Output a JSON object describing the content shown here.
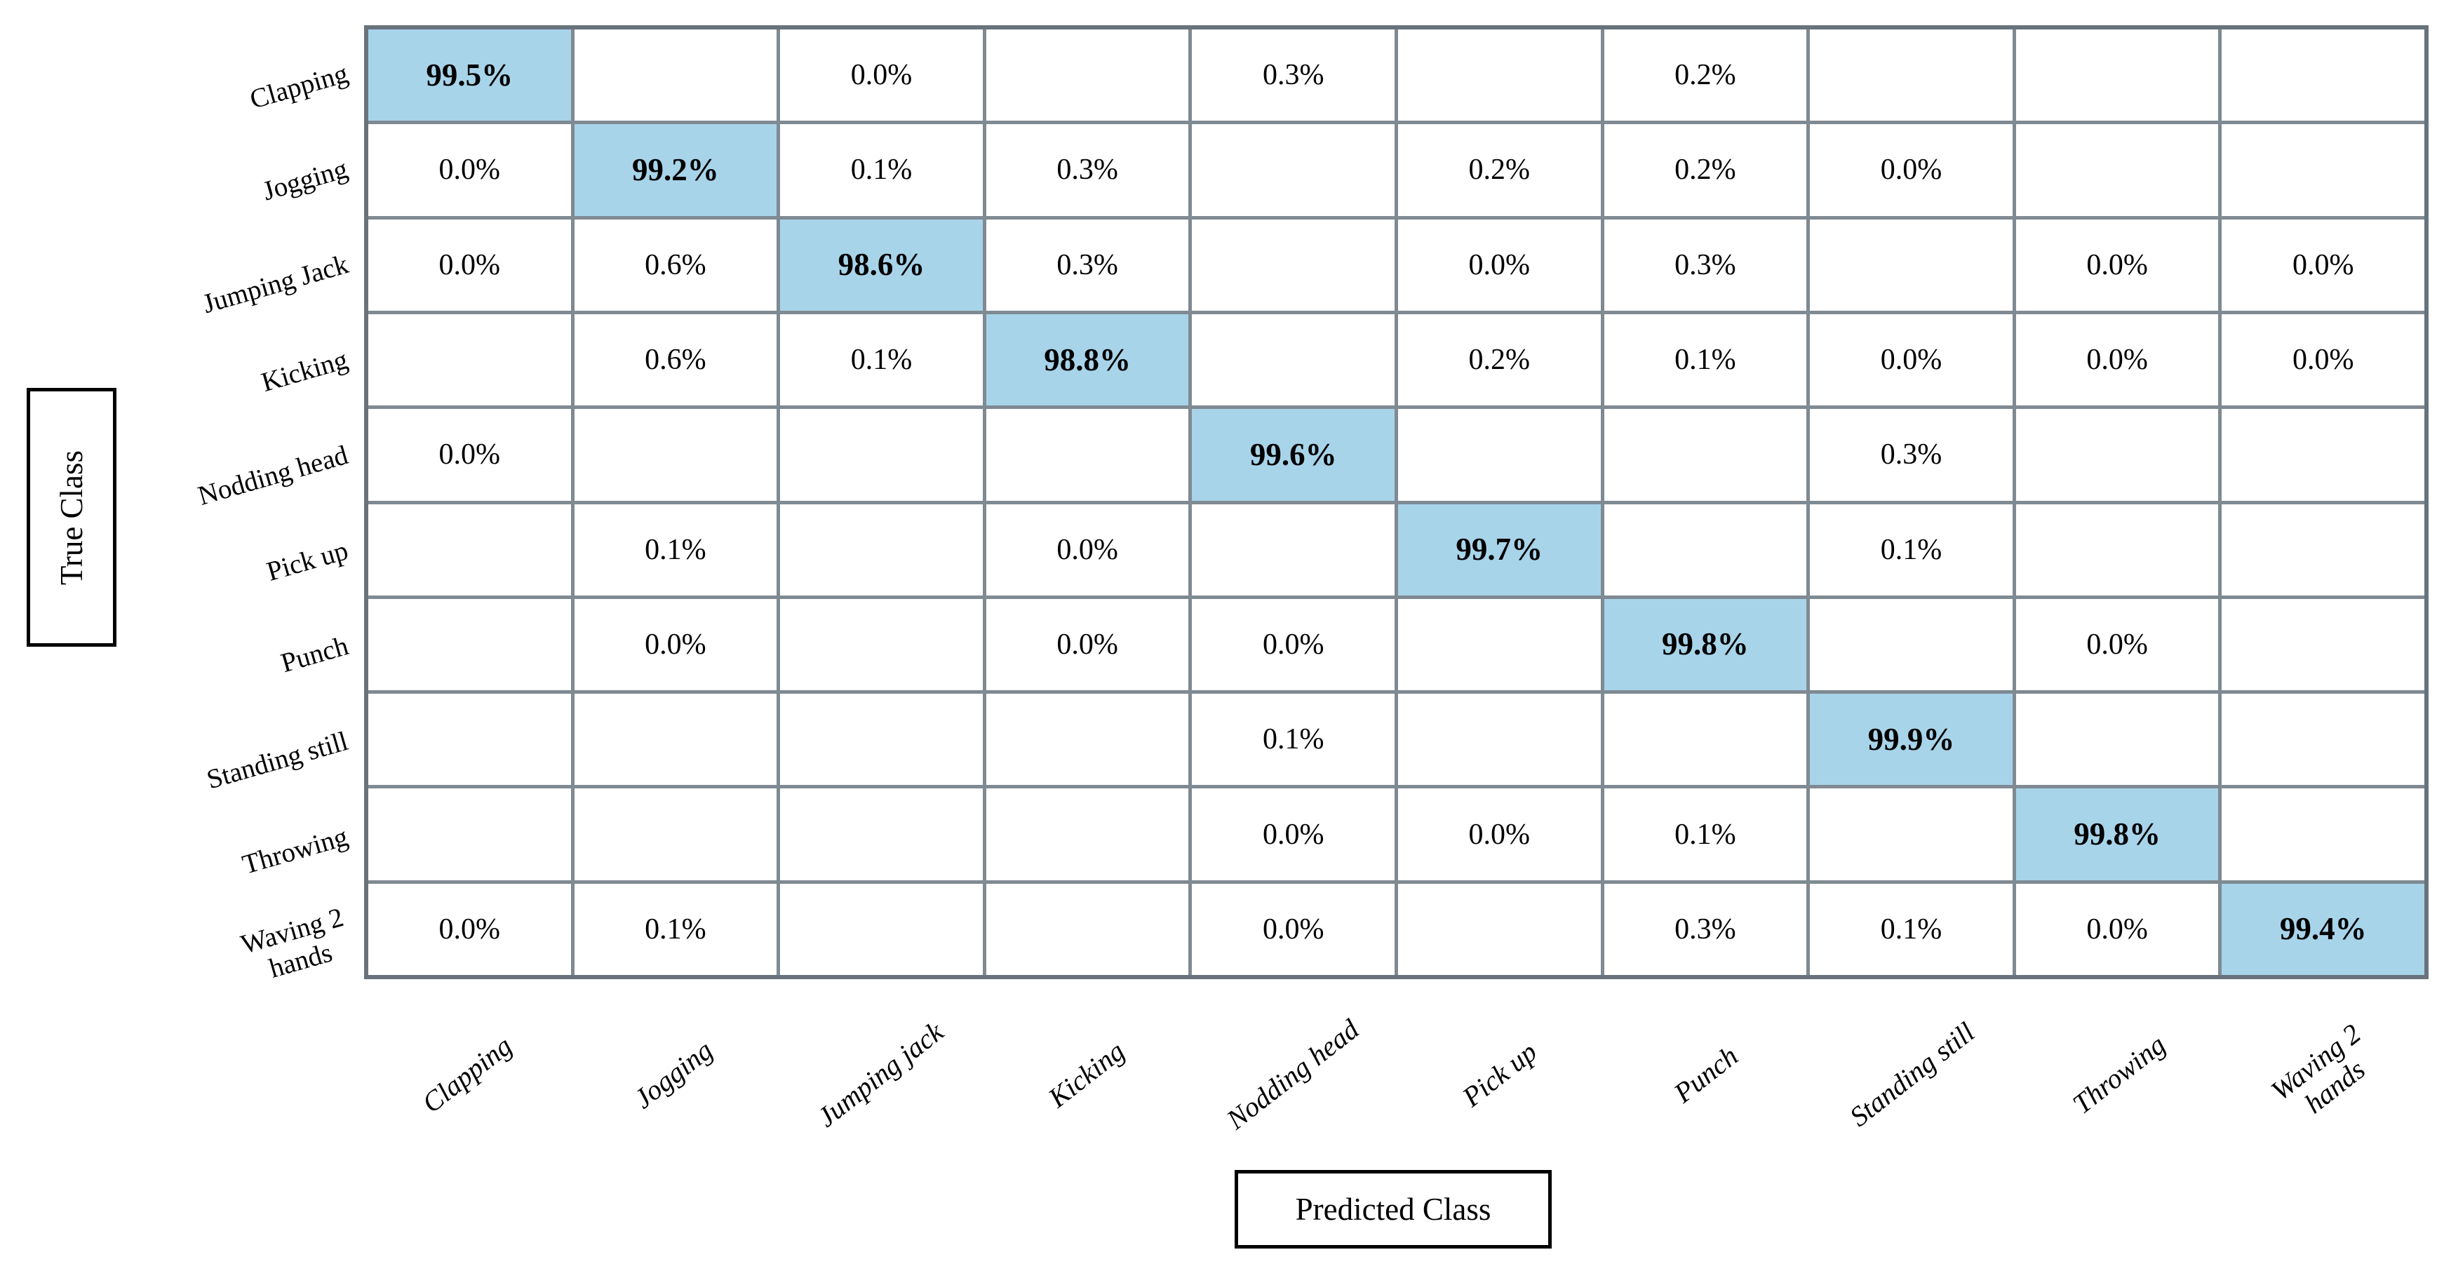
{
  "figure": {
    "kind": "confusion-matrix",
    "y_axis_label": "True Class",
    "x_axis_label": "Predicted Class"
  },
  "colors": {
    "background": "#FFFFFF",
    "diagonal_fill": "#A8D4EA",
    "grid_line": "#7F8A92",
    "outer_border": "#68737C",
    "axis_box_border": "#000000",
    "text": "#000000"
  },
  "chart_data": {
    "type": "heatmap",
    "title": "",
    "xlabel": "Predicted Class",
    "ylabel": "True Class",
    "legend": "none",
    "grid": "on",
    "cell_value_format": "percent_1dp",
    "diagonal_highlighted": true,
    "row_labels": [
      "Clapping",
      "Jogging",
      "Jumping Jack",
      "Kicking",
      "Nodding head",
      "Pick up",
      "Punch",
      "Standing still",
      "Throwing",
      "Waving 2\nhands"
    ],
    "col_labels": [
      "Clapping",
      "Jogging",
      "Jumping jack",
      "Kicking",
      "Nodding head",
      "Pick up",
      "Punch",
      "Standing still",
      "Throwing",
      "Waving 2\nhands"
    ],
    "values_percent": [
      [
        99.5,
        null,
        0.0,
        null,
        0.3,
        null,
        0.2,
        null,
        null,
        null
      ],
      [
        0.0,
        99.2,
        0.1,
        0.3,
        null,
        0.2,
        0.2,
        0.0,
        null,
        null
      ],
      [
        0.0,
        0.6,
        98.6,
        0.3,
        null,
        0.0,
        0.3,
        null,
        0.0,
        0.0
      ],
      [
        null,
        0.6,
        0.1,
        98.8,
        null,
        0.2,
        0.1,
        0.0,
        0.0,
        0.0
      ],
      [
        0.0,
        null,
        null,
        null,
        99.6,
        null,
        null,
        0.3,
        null,
        null
      ],
      [
        null,
        0.1,
        null,
        0.0,
        null,
        99.7,
        null,
        0.1,
        null,
        null
      ],
      [
        null,
        0.0,
        null,
        0.0,
        0.0,
        null,
        99.8,
        null,
        0.0,
        null
      ],
      [
        null,
        null,
        null,
        null,
        0.1,
        null,
        null,
        99.9,
        null,
        null
      ],
      [
        null,
        null,
        null,
        null,
        0.0,
        0.0,
        0.1,
        null,
        99.8,
        null
      ],
      [
        0.0,
        0.1,
        null,
        null,
        0.0,
        null,
        0.3,
        0.1,
        0.0,
        99.4
      ]
    ]
  }
}
